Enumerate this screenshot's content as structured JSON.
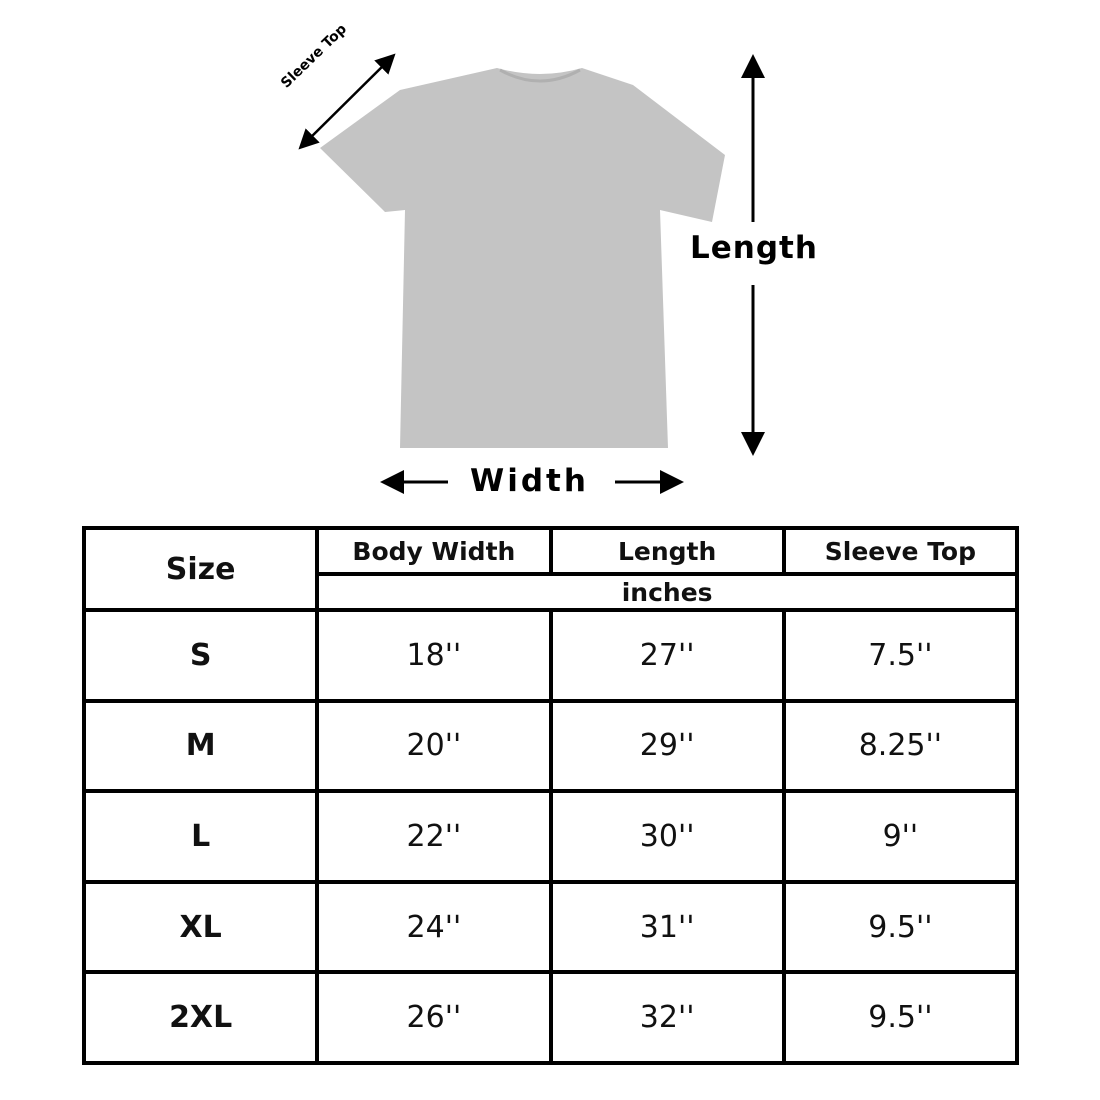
{
  "diagram": {
    "sleeve_label": "Sleeve Top",
    "length_label": "Length",
    "width_label": "Width",
    "shirt_color": "#c4c4c4"
  },
  "table": {
    "size_header": "Size",
    "columns": [
      "Body Width",
      "Length",
      "Sleeve Top"
    ],
    "unit": "inches",
    "rows": [
      {
        "size": "S",
        "values": [
          "18''",
          "27''",
          "7.5''"
        ]
      },
      {
        "size": "M",
        "values": [
          "20''",
          "29''",
          "8.25''"
        ]
      },
      {
        "size": "L",
        "values": [
          "22''",
          "30''",
          "9''"
        ]
      },
      {
        "size": "XL",
        "values": [
          "24''",
          "31''",
          "9.5''"
        ]
      },
      {
        "size": "2XL",
        "values": [
          "26''",
          "32''",
          "9.5''"
        ]
      }
    ]
  }
}
